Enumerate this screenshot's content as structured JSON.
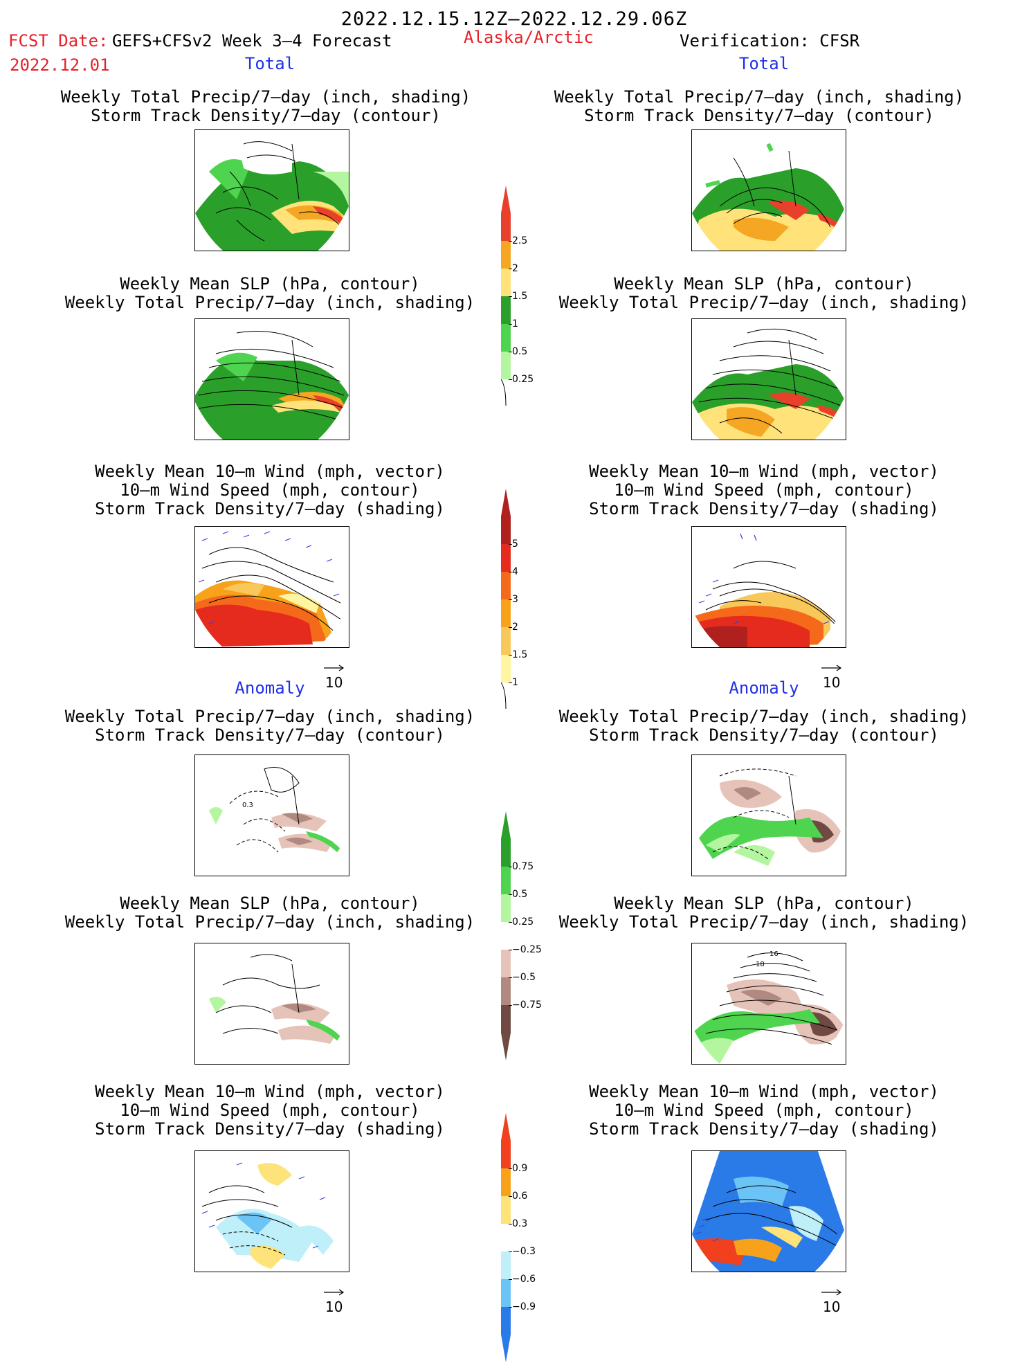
{
  "header": {
    "period": "2022.12.15.12Z–2022.12.29.06Z",
    "fcst_prefix": "FCST Date:",
    "model": "GEFS+CFSv2 Week 3–4 Forecast",
    "region": "Alaska/Arctic",
    "fcst_date": "2022.12.01",
    "verification": "Verification: CFSR"
  },
  "sections": {
    "total_left": "Total",
    "total_right": "Total",
    "anomaly_left": "Anomaly",
    "anomaly_right": "Anomaly"
  },
  "titles": {
    "precip_storm": [
      "Weekly Total Precip/7–day (inch, shading)",
      "Storm Track Density/7–day (contour)"
    ],
    "slp_precip": [
      "Weekly Mean SLP (hPa, contour)",
      "Weekly Total Precip/7–day (inch, shading)"
    ],
    "wind": [
      "Weekly Mean 10–m Wind (mph, vector)",
      "10–m Wind Speed (mph, contour)",
      "Storm Track Density/7–day (shading)"
    ]
  },
  "vector_ref": "10",
  "colorbars": {
    "precip_total": {
      "labels": [
        "2.5",
        "2",
        "1.5",
        "1",
        "0.5",
        "0.25"
      ],
      "colors": [
        "#e8402a",
        "#f5a623",
        "#ffe37a",
        "#2aa02a",
        "#4fd44f",
        "#b4f5a0"
      ]
    },
    "storm_total": {
      "labels": [
        "5",
        "4",
        "3",
        "2",
        "1.5",
        "1"
      ],
      "colors": [
        "#b0201e",
        "#e52b1e",
        "#f56a1a",
        "#f7a21a",
        "#f9c85a",
        "#fff4a0"
      ]
    },
    "precip_anom": {
      "labels": [
        "0.75",
        "0.5",
        "0.25",
        "−0.25",
        "−0.5",
        "−0.75"
      ],
      "colors": [
        "#2aa02a",
        "#4fd44f",
        "#b4f5a0",
        "#ffffff",
        "#e6c3b8",
        "#b08a80",
        "#6e4a42"
      ]
    },
    "storm_anom": {
      "labels": [
        "0.9",
        "0.6",
        "0.3",
        "−0.3",
        "−0.6",
        "−0.9"
      ],
      "colors": [
        "#f0401e",
        "#f7a21a",
        "#fde37a",
        "#ffffff",
        "#bfeff9",
        "#6cc3f5",
        "#2a7ae8"
      ]
    }
  },
  "contour_labels": {
    "anom_precip_left": "0.3",
    "anom_slp_right": [
      "16",
      "18"
    ]
  }
}
